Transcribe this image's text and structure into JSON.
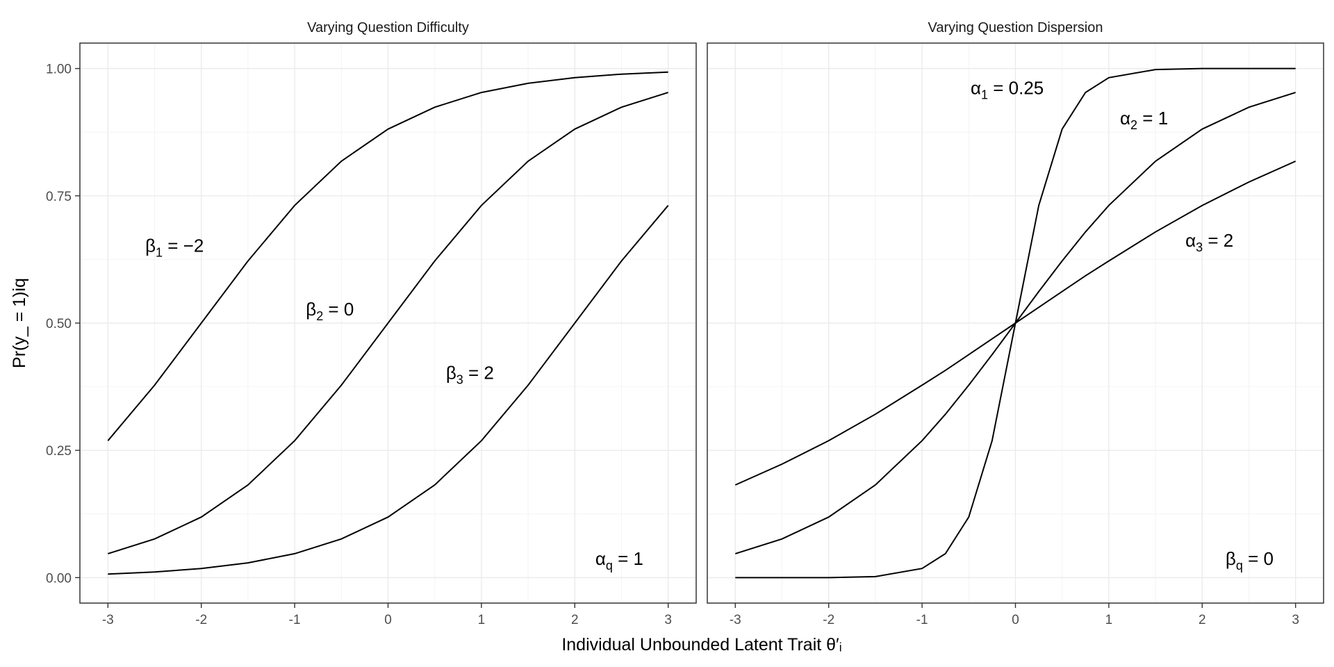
{
  "chart_data": [
    {
      "type": "line",
      "title": "Varying Question Difficulty",
      "xlabel": "Individual Unbounded Latent Trait θ′ᵢ",
      "ylabel": "Pr(y_ = 1)iq",
      "xlim": [
        -3,
        3
      ],
      "ylim": [
        0,
        1
      ],
      "xticks": [
        "-3",
        "-2",
        "-1",
        "0",
        "1",
        "2",
        "3"
      ],
      "yticks": [
        "0.00",
        "0.25",
        "0.50",
        "0.75",
        "1.00"
      ],
      "grid": true,
      "x": [
        -3,
        -2.5,
        -2,
        -1.5,
        -1,
        -0.5,
        0,
        0.5,
        1,
        1.5,
        2,
        2.5,
        3
      ],
      "series": [
        {
          "values": [
            0.269,
            0.378,
            0.5,
            0.622,
            0.731,
            0.818,
            0.881,
            0.924,
            0.953,
            0.971,
            0.982,
            0.989,
            0.993
          ]
        },
        {
          "values": [
            0.047,
            0.076,
            0.119,
            0.182,
            0.269,
            0.378,
            0.5,
            0.622,
            0.731,
            0.818,
            0.881,
            0.924,
            0.953
          ]
        },
        {
          "values": [
            0.007,
            0.011,
            0.018,
            0.029,
            0.047,
            0.076,
            0.119,
            0.182,
            0.269,
            0.378,
            0.5,
            0.622,
            0.731
          ]
        }
      ],
      "annotations": [
        {
          "sym": "β",
          "sub": "1",
          "rest": " = −2",
          "x": -2.6,
          "y": 0.64
        },
        {
          "sym": "β",
          "sub": "2",
          "rest": " = 0",
          "x": -0.88,
          "y": 0.515
        },
        {
          "sym": "β",
          "sub": "3",
          "rest": " = 2",
          "x": 0.62,
          "y": 0.39
        },
        {
          "sym": "α",
          "sub": "q",
          "rest": " = 1",
          "x": 2.22,
          "y": 0.025
        }
      ]
    },
    {
      "type": "line",
      "title": "Varying Question Dispersion",
      "xlim": [
        -3,
        3
      ],
      "ylim": [
        0,
        1
      ],
      "xticks": [
        "-3",
        "-2",
        "-1",
        "0",
        "1",
        "2",
        "3"
      ],
      "grid": true,
      "x": [
        -3,
        -2.5,
        -2,
        -1.5,
        -1,
        -0.75,
        -0.5,
        -0.25,
        0,
        0.25,
        0.5,
        0.75,
        1,
        1.5,
        2,
        2.5,
        3
      ],
      "series": [
        {
          "values": [
            0.0,
            0.0,
            0.0,
            0.002,
            0.018,
            0.047,
            0.119,
            0.269,
            0.5,
            0.731,
            0.881,
            0.953,
            0.982,
            0.998,
            1.0,
            1.0,
            1.0
          ]
        },
        {
          "values": [
            0.047,
            0.076,
            0.119,
            0.182,
            0.269,
            0.321,
            0.378,
            0.438,
            0.5,
            0.562,
            0.622,
            0.679,
            0.731,
            0.818,
            0.881,
            0.924,
            0.953
          ]
        },
        {
          "values": [
            0.182,
            0.223,
            0.269,
            0.321,
            0.378,
            0.407,
            0.438,
            0.469,
            0.5,
            0.531,
            0.562,
            0.593,
            0.622,
            0.679,
            0.731,
            0.777,
            0.818
          ]
        }
      ],
      "annotations": [
        {
          "sym": "α",
          "sub": "1",
          "rest": " = 0.25",
          "x": -0.48,
          "y": 0.95
        },
        {
          "sym": "α",
          "sub": "2",
          "rest": " = 1",
          "x": 1.12,
          "y": 0.89
        },
        {
          "sym": "α",
          "sub": "3",
          "rest": " = 2",
          "x": 1.82,
          "y": 0.65
        },
        {
          "sym": "β",
          "sub": "q",
          "rest": " = 0",
          "x": 2.25,
          "y": 0.025
        }
      ]
    }
  ]
}
